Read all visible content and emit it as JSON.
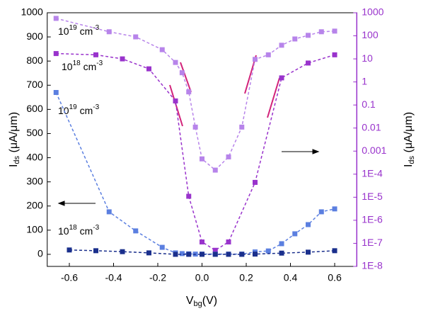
{
  "chart_data": {
    "type": "line",
    "x_label": {
      "main": "V",
      "sub": "bg",
      "rest": "(V)"
    },
    "y_label": {
      "main": "I",
      "sub": "ds",
      "rest": " (μA/μm)"
    },
    "y2_label": {
      "main": "I",
      "sub": "ds",
      "rest": " (μA/μm)"
    },
    "xlim": [
      -0.7,
      0.7
    ],
    "xticks": [
      -0.6,
      -0.4,
      -0.2,
      {
        "value": 0,
        "label": "0.0"
      },
      0.2,
      0.4,
      0.6
    ],
    "ylim": [
      -50,
      1000
    ],
    "yticks": [
      0,
      100,
      200,
      300,
      400,
      500,
      600,
      700,
      800,
      900,
      1000
    ],
    "y2lim": [
      1e-08,
      1000
    ],
    "y2_log": true,
    "y2color": "#9933cc",
    "y2ticks": [
      1000,
      100,
      10,
      1,
      0.1,
      0.01,
      0.001,
      {
        "value": 0.0001,
        "label": "1E-4"
      },
      {
        "value": 1e-05,
        "label": "1E-5"
      },
      {
        "value": 1e-06,
        "label": "1E-6"
      },
      {
        "value": 1e-07,
        "label": "1E-7"
      },
      {
        "value": 1e-08,
        "label": "1E-8"
      }
    ],
    "annotations": [
      {
        "base": "10",
        "exp": "19",
        "unit": " cm",
        "unit_exp": "-3"
      },
      {
        "base": "10",
        "exp": "18",
        "unit": " cm",
        "unit_exp": "-3"
      },
      {
        "base": "10",
        "exp": "19",
        "unit": " cm",
        "unit_exp": "-3"
      },
      {
        "base": "10",
        "exp": "18",
        "unit": " cm",
        "unit_exp": "-3"
      }
    ],
    "series": [
      {
        "color": "#b784ea",
        "axis": "y2",
        "x": [
          -0.66,
          -0.42,
          -0.3,
          -0.18,
          -0.12,
          -0.09,
          -0.06,
          -0.03,
          0,
          0.06,
          0.12,
          0.18,
          0.24,
          0.3,
          0.36,
          0.42,
          0.48,
          0.54,
          0.6
        ],
        "values": [
          570,
          150,
          90,
          25,
          7,
          2.5,
          0.37,
          0.011,
          0.00046,
          0.00015,
          0.00056,
          0.011,
          9.5,
          15,
          39,
          73,
          105,
          150,
          160
        ]
      },
      {
        "color": "#9933cc",
        "axis": "y2",
        "x": [
          -0.66,
          -0.48,
          -0.36,
          -0.24,
          -0.12,
          -0.06,
          0,
          0.06,
          0.12,
          0.24,
          0.36,
          0.48,
          0.6
        ],
        "values": [
          17,
          15,
          10,
          3.7,
          0.15,
          1.1e-05,
          1.15e-07,
          5e-08,
          1.15e-07,
          4.4e-05,
          1.5,
          6.6,
          15
        ]
      },
      {
        "color": "#5b7fe0",
        "x": [
          -0.66,
          -0.42,
          -0.3,
          -0.18,
          -0.12,
          -0.09,
          -0.06,
          -0.03,
          0,
          0.06,
          0.12,
          0.18,
          0.24,
          0.3,
          0.36,
          0.42,
          0.48,
          0.54,
          0.6
        ],
        "values": [
          670,
          176,
          97,
          29,
          6,
          3,
          2,
          1,
          1,
          1,
          1,
          1,
          10,
          14,
          44,
          85,
          123,
          176,
          188
        ]
      },
      {
        "color": "#1a2f8c",
        "x": [
          -0.6,
          -0.48,
          -0.36,
          -0.24,
          -0.12,
          -0.06,
          0,
          0.06,
          0.12,
          0.18,
          0.24,
          0.36,
          0.48,
          0.6
        ],
        "values": [
          18,
          15,
          11,
          6,
          0,
          0,
          0,
          0,
          0,
          0,
          1,
          5,
          9,
          15
        ]
      }
    ]
  }
}
